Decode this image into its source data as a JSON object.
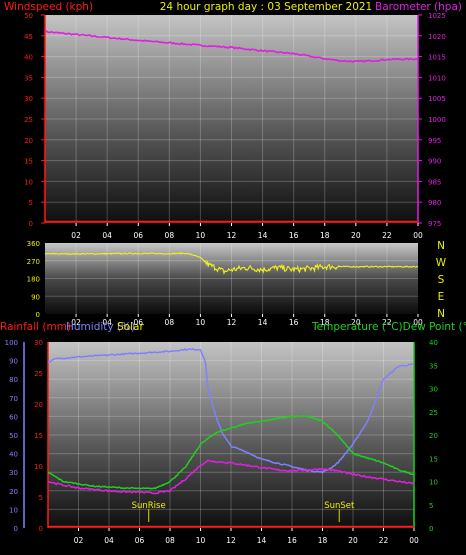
{
  "header": {
    "title": "24 hour graph day : 03 September 2021"
  },
  "colors": {
    "wind": "#ff1a1a",
    "baro": "#e020e0",
    "dir": "#f0f020",
    "rain": "#ff1a1a",
    "humidity": "#8080ff",
    "solar": "#c8c8c8",
    "temp": "#20d020",
    "dew": "#e020e0",
    "label_yellow": "#f0f000",
    "tick": "#ffffff"
  },
  "chart_data": [
    {
      "type": "line",
      "id": "wind_baro",
      "left_axis_label": "Windspeed (kph)",
      "right_axis_label": "Barometer (hpa)",
      "x_ticks": [
        "02",
        "04",
        "06",
        "08",
        "10",
        "12",
        "14",
        "16",
        "18",
        "20",
        "22",
        "00"
      ],
      "xlim": [
        0,
        24
      ],
      "left_ticks": [
        "0",
        "5",
        "10",
        "15",
        "20",
        "25",
        "30",
        "35",
        "40",
        "45",
        "50"
      ],
      "left_ylim": [
        0,
        50
      ],
      "right_ticks": [
        "975",
        "980",
        "985",
        "990",
        "995",
        "1000",
        "1005",
        "1010",
        "1015",
        "1020",
        "1025"
      ],
      "right_ylim": [
        975,
        1025
      ],
      "series": [
        {
          "axis": "right",
          "x": [
            0,
            2,
            4,
            6,
            8,
            10,
            12,
            14,
            16,
            18,
            19,
            20,
            21,
            22,
            23,
            24
          ],
          "values": [
            1021.0,
            1020.3,
            1019.6,
            1018.9,
            1018.3,
            1017.7,
            1017.2,
            1016.4,
            1015.7,
            1014.5,
            1014.0,
            1013.8,
            1014.0,
            1014.3,
            1014.4,
            1014.4
          ]
        },
        {
          "axis": "left",
          "x": [
            0,
            24
          ],
          "values": [
            0.3,
            0.3
          ]
        }
      ]
    },
    {
      "type": "line",
      "id": "direction",
      "right_axis_label": "N W S E N",
      "x_ticks": [
        "02",
        "04",
        "06",
        "08",
        "10",
        "12",
        "14",
        "16",
        "18",
        "20",
        "22",
        "00"
      ],
      "xlim": [
        0,
        24
      ],
      "left_ticks": [
        "0",
        "90",
        "180",
        "270",
        "360"
      ],
      "ylim": [
        0,
        360
      ],
      "series": [
        {
          "x": [
            0,
            3,
            6,
            8,
            9,
            9.5,
            10,
            10.5,
            11,
            11.5,
            12,
            13,
            14,
            15,
            16,
            17,
            18,
            24
          ],
          "values": [
            305,
            305,
            307,
            306,
            308,
            300,
            285,
            250,
            235,
            215,
            225,
            235,
            225,
            235,
            225,
            230,
            240,
            240
          ]
        }
      ]
    },
    {
      "type": "line",
      "id": "rain_hum_temp",
      "left_axis_labels": [
        "Rainfall (mm)",
        "Humidity (%)",
        "Solar"
      ],
      "right_axis_label": "Temperature (°C)Dew Point (°C)",
      "annotations": [
        "SunRise",
        "SunSet"
      ],
      "x_ticks": [
        "02",
        "04",
        "06",
        "08",
        "10",
        "12",
        "14",
        "16",
        "18",
        "20",
        "22",
        "00"
      ],
      "xlim": [
        0,
        24
      ],
      "hum_ticks": [
        "0",
        "10",
        "20",
        "30",
        "40",
        "50",
        "60",
        "70",
        "80",
        "90",
        "100"
      ],
      "hum_ylim": [
        0,
        100
      ],
      "rain_ticks": [
        "0",
        "5",
        "10",
        "15",
        "20",
        "25",
        "30"
      ],
      "rain_ylim": [
        0,
        30
      ],
      "temp_ticks": [
        "0",
        "5",
        "10",
        "15",
        "20",
        "25",
        "30",
        "35",
        "40"
      ],
      "temp_ylim": [
        0,
        40
      ],
      "sunrise_hour": 6.6,
      "sunset_hour": 19.1,
      "series": [
        {
          "name": "Humidity (%)",
          "axis": "hum",
          "x": [
            0,
            0.5,
            2,
            4,
            6,
            8,
            9,
            10,
            10.3,
            10.5,
            11,
            11.5,
            12,
            13,
            14,
            15,
            16,
            17,
            18,
            18.5,
            19,
            20,
            21,
            22,
            23,
            24
          ],
          "values": [
            89,
            91,
            92,
            93,
            94,
            95,
            96,
            96,
            90,
            75,
            60,
            50,
            44,
            41,
            37,
            35,
            33,
            31,
            30,
            32,
            35,
            45,
            58,
            80,
            87,
            88
          ]
        },
        {
          "name": "Temperature (°C)",
          "axis": "temp",
          "x": [
            0,
            0.5,
            1,
            2,
            3,
            4,
            5,
            6,
            7,
            8,
            9,
            10,
            11,
            12,
            13,
            14,
            15,
            16,
            17,
            18,
            19,
            20,
            21,
            22,
            23,
            24
          ],
          "values": [
            12.0,
            11.0,
            10.0,
            9.5,
            9.0,
            8.8,
            8.6,
            8.5,
            8.5,
            10.0,
            13.0,
            18.0,
            20.5,
            21.5,
            22.5,
            23.0,
            23.5,
            24.0,
            24.0,
            23.0,
            20.0,
            16.0,
            15.0,
            14.0,
            12.5,
            11.5
          ]
        },
        {
          "name": "Dew Point (°C)",
          "axis": "temp",
          "x": [
            0,
            1,
            2,
            3,
            4,
            5,
            6,
            7,
            8,
            9,
            10,
            10.5,
            11,
            12,
            13,
            14,
            15,
            16,
            17,
            18,
            19,
            20,
            21,
            22,
            23,
            24
          ],
          "values": [
            10.0,
            9.2,
            8.6,
            8.3,
            8.0,
            7.8,
            7.7,
            7.5,
            8.0,
            10.5,
            13.5,
            14.5,
            14.3,
            14.0,
            13.5,
            13.0,
            12.5,
            12.3,
            12.5,
            12.7,
            12.3,
            11.5,
            11.0,
            10.5,
            10.0,
            9.5
          ]
        },
        {
          "axis": "rain",
          "x": [
            0,
            24
          ],
          "values": [
            0.2,
            0.2
          ]
        }
      ]
    }
  ]
}
